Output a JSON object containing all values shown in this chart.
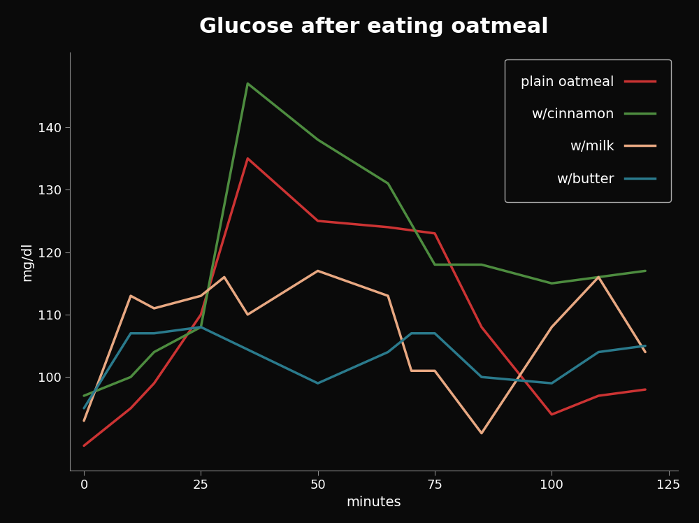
{
  "title": "Glucose after eating oatmeal",
  "xlabel": "minutes",
  "ylabel": "mg/dl",
  "background_color": "#0a0a0a",
  "text_color": "#ffffff",
  "series": [
    {
      "label": "plain oatmeal",
      "color": "#cc3333",
      "x": [
        0,
        10,
        15,
        25,
        35,
        50,
        65,
        75,
        85,
        100,
        110,
        120
      ],
      "y": [
        89,
        95,
        99,
        110,
        135,
        125,
        124,
        123,
        108,
        94,
        97,
        98
      ]
    },
    {
      "label": "w/cinnamon",
      "color": "#4d8c3f",
      "x": [
        0,
        10,
        15,
        25,
        35,
        50,
        65,
        75,
        85,
        100,
        110,
        120
      ],
      "y": [
        97,
        100,
        104,
        108,
        147,
        138,
        131,
        118,
        118,
        115,
        116,
        117
      ]
    },
    {
      "label": "w/milk",
      "color": "#e8a882",
      "x": [
        0,
        10,
        15,
        25,
        30,
        35,
        50,
        65,
        70,
        75,
        85,
        100,
        110,
        120
      ],
      "y": [
        93,
        113,
        111,
        113,
        116,
        110,
        117,
        113,
        101,
        101,
        91,
        108,
        116,
        104
      ]
    },
    {
      "label": "w/butter",
      "color": "#2a7a8c",
      "x": [
        0,
        10,
        15,
        25,
        50,
        65,
        70,
        75,
        85,
        100,
        110,
        120
      ],
      "y": [
        95,
        107,
        107,
        108,
        99,
        104,
        107,
        107,
        100,
        99,
        104,
        105
      ]
    }
  ],
  "xlim": [
    -3,
    127
  ],
  "ylim": [
    85,
    152
  ],
  "xticks": [
    0,
    25,
    50,
    75,
    100,
    125
  ],
  "yticks": [
    100,
    110,
    120,
    130,
    140
  ],
  "legend_bg": "#0a0a0a",
  "legend_edge": "#aaaaaa",
  "title_fontsize": 22,
  "label_fontsize": 14,
  "tick_fontsize": 13,
  "legend_fontsize": 14,
  "line_width": 2.5
}
